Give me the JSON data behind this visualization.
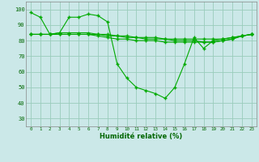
{
  "title": "",
  "xlabel": "Humidité relative (%)",
  "ylabel": "",
  "background_color": "#cbe8e8",
  "grid_color": "#99ccbb",
  "line_color": "#00aa00",
  "marker_color": "#00aa00",
  "xlim": [
    -0.5,
    23.5
  ],
  "ylim": [
    25,
    105
  ],
  "yticks": [
    30,
    40,
    50,
    60,
    70,
    80,
    90,
    100
  ],
  "xticks": [
    0,
    1,
    2,
    3,
    4,
    5,
    6,
    7,
    8,
    9,
    10,
    11,
    12,
    13,
    14,
    15,
    16,
    17,
    18,
    19,
    20,
    21,
    22,
    23
  ],
  "series": [
    {
      "x": [
        0,
        1,
        2,
        3,
        4,
        5,
        6,
        7,
        8,
        9,
        10,
        11,
        12,
        13,
        14,
        15,
        16,
        17,
        18,
        19,
        20,
        21,
        22,
        23
      ],
      "y": [
        98,
        95,
        84,
        85,
        95,
        95,
        97,
        96,
        92,
        65,
        56,
        50,
        48,
        46,
        43,
        50,
        65,
        82,
        75,
        80,
        81,
        82,
        83,
        84
      ]
    },
    {
      "x": [
        0,
        1,
        2,
        3,
        4,
        5,
        6,
        7,
        8,
        9,
        10,
        11,
        12,
        13,
        14,
        15,
        16,
        17,
        18,
        19,
        20,
        21,
        22,
        23
      ],
      "y": [
        84,
        84,
        84,
        85,
        85,
        85,
        85,
        84,
        83,
        83,
        82,
        82,
        81,
        81,
        81,
        80,
        80,
        80,
        79,
        79,
        80,
        81,
        83,
        84
      ]
    },
    {
      "x": [
        0,
        1,
        2,
        3,
        4,
        5,
        6,
        7,
        8,
        9,
        10,
        11,
        12,
        13,
        14,
        15,
        16,
        17,
        18,
        19,
        20,
        21,
        22,
        23
      ],
      "y": [
        84,
        84,
        84,
        84,
        84,
        84,
        84,
        83,
        82,
        81,
        81,
        80,
        80,
        80,
        79,
        79,
        79,
        79,
        79,
        79,
        80,
        81,
        83,
        84
      ]
    },
    {
      "x": [
        0,
        1,
        2,
        3,
        4,
        5,
        6,
        7,
        8,
        9,
        10,
        11,
        12,
        13,
        14,
        15,
        16,
        17,
        18,
        19,
        20,
        21,
        22,
        23
      ],
      "y": [
        84,
        84,
        84,
        84,
        84,
        84,
        84,
        84,
        84,
        83,
        83,
        82,
        82,
        82,
        81,
        81,
        81,
        81,
        81,
        81,
        81,
        82,
        83,
        84
      ]
    }
  ]
}
